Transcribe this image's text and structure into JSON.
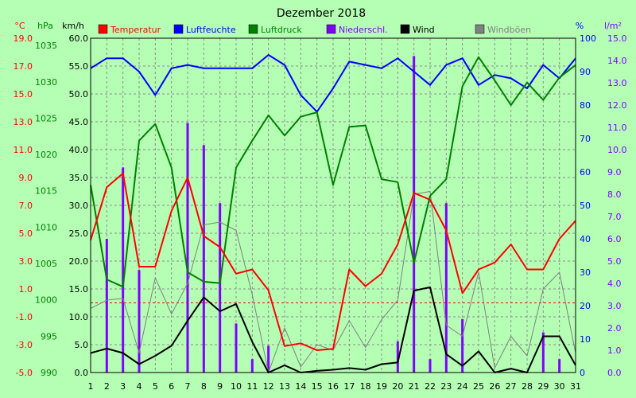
{
  "chart_data": {
    "type": "line",
    "title": "Dezember 2018",
    "axis_units": {
      "temperature": "°C",
      "pressure": "hPa",
      "wind": "km/h",
      "humidity": "%",
      "precipitation": "l/m²"
    },
    "x": [
      1,
      2,
      3,
      4,
      5,
      6,
      7,
      8,
      9,
      10,
      11,
      12,
      13,
      14,
      15,
      16,
      17,
      18,
      19,
      20,
      21,
      22,
      23,
      24,
      25,
      26,
      27,
      28,
      29,
      30,
      31
    ],
    "temperature_ticks": [
      "19.0",
      "17.0",
      "15.0",
      "13.0",
      "11.0",
      "9.0",
      "7.0",
      "5.0",
      "3.0",
      "1.0",
      "-1.0",
      "-3.0",
      "-5.0"
    ],
    "pressure_ticks": [
      "1035",
      "1030",
      "1025",
      "1020",
      "1015",
      "1010",
      "1005",
      "1000",
      "995",
      "990"
    ],
    "wind_ticks": [
      "60.0",
      "55.0",
      "50.0",
      "45.0",
      "40.0",
      "35.0",
      "30.0",
      "25.0",
      "20.0",
      "15.0",
      "10.0",
      "5.0",
      "0.0"
    ],
    "humidity_ticks": [
      "100",
      "90",
      "80",
      "70",
      "60",
      "50",
      "40",
      "30",
      "20",
      "10",
      "0"
    ],
    "precipitation_ticks": [
      "15.0",
      "14.0",
      "13.0",
      "12.0",
      "11.0",
      "10.0",
      "9.0",
      "8.0",
      "7.0",
      "6.0",
      "5.0",
      "4.0",
      "3.0",
      "2.0",
      "1.0",
      "0.0"
    ],
    "ranges": {
      "temperature": [
        -5,
        19
      ],
      "pressure": [
        990,
        1036
      ],
      "wind": [
        0,
        60
      ],
      "humidity": [
        0,
        100
      ],
      "precipitation": [
        0,
        15
      ]
    },
    "grid": true,
    "legend_position": "top",
    "series": [
      {
        "name": "Temperatur",
        "axis": "temperature",
        "color": "#ff0000",
        "width": 2,
        "values": [
          4.5,
          8.3,
          9.3,
          2.6,
          2.6,
          6.6,
          9.0,
          4.8,
          4.0,
          2.1,
          2.4,
          0.9,
          -3.1,
          -2.9,
          -3.4,
          -3.3,
          2.4,
          1.2,
          2.1,
          4.2,
          7.9,
          7.4,
          5.2,
          0.7,
          2.4,
          2.9,
          4.2,
          2.4,
          2.4,
          4.6,
          5.9
        ]
      },
      {
        "name": "Luftfeuchte",
        "axis": "humidity",
        "color": "#0000ff",
        "width": 2,
        "values": [
          91,
          94,
          94,
          90,
          83,
          91,
          92,
          91,
          91,
          91,
          91,
          95,
          92,
          83,
          78,
          85,
          93,
          92,
          91,
          94,
          90,
          86,
          92,
          94,
          86,
          89,
          88,
          85,
          92,
          88,
          94
        ]
      },
      {
        "name": "Luftdruck",
        "axis": "pressure",
        "color": "#008000",
        "width": 2,
        "values": [
          1015.8,
          1002.8,
          1001.8,
          1021.9,
          1024.2,
          1018.2,
          1003.8,
          1002.5,
          1002.3,
          1018.2,
          1021.9,
          1025.4,
          1022.6,
          1025.2,
          1025.8,
          1015.8,
          1023.8,
          1024.0,
          1016.6,
          1016.2,
          1005.1,
          1014.3,
          1016.6,
          1029.4,
          1033.4,
          1030.2,
          1026.8,
          1029.9,
          1027.5,
          1030.6,
          1032.3
        ]
      },
      {
        "name": "Niederschl.",
        "axis": "precipitation",
        "color": "#8000ff",
        "type": "bar",
        "values": [
          0.0,
          6.0,
          9.2,
          4.6,
          0.0,
          0.0,
          11.2,
          10.2,
          7.6,
          2.2,
          0.6,
          1.2,
          0.0,
          0.0,
          0.0,
          0.0,
          0.0,
          0.0,
          0.0,
          1.4,
          14.2,
          0.6,
          7.6,
          2.4,
          0.0,
          0.0,
          0.0,
          0.0,
          1.8,
          0.6,
          0.0
        ]
      },
      {
        "name": "Wind",
        "axis": "wind",
        "color": "#000000",
        "width": 2,
        "values": [
          3.5,
          4.3,
          3.5,
          1.5,
          3.0,
          4.8,
          9.3,
          13.5,
          11.0,
          12.3,
          5.5,
          0.0,
          1.3,
          0.0,
          0.3,
          0.5,
          0.8,
          0.5,
          1.5,
          1.8,
          14.7,
          15.3,
          3.3,
          1.2,
          3.8,
          0.0,
          0.7,
          0.0,
          6.5,
          6.5,
          1.3
        ]
      },
      {
        "name": "Windböen",
        "axis": "wind",
        "color": "#808080",
        "width": 1,
        "values": [
          11.5,
          13.0,
          13.3,
          3.5,
          17.0,
          10.5,
          16.0,
          26.5,
          27.0,
          25.5,
          14.0,
          0.0,
          8.0,
          1.0,
          5.0,
          4.0,
          9.3,
          4.5,
          9.5,
          13.0,
          32.0,
          32.5,
          8.5,
          6.5,
          18.0,
          0.8,
          6.5,
          3.0,
          15.0,
          18.0,
          3.5
        ]
      }
    ]
  }
}
